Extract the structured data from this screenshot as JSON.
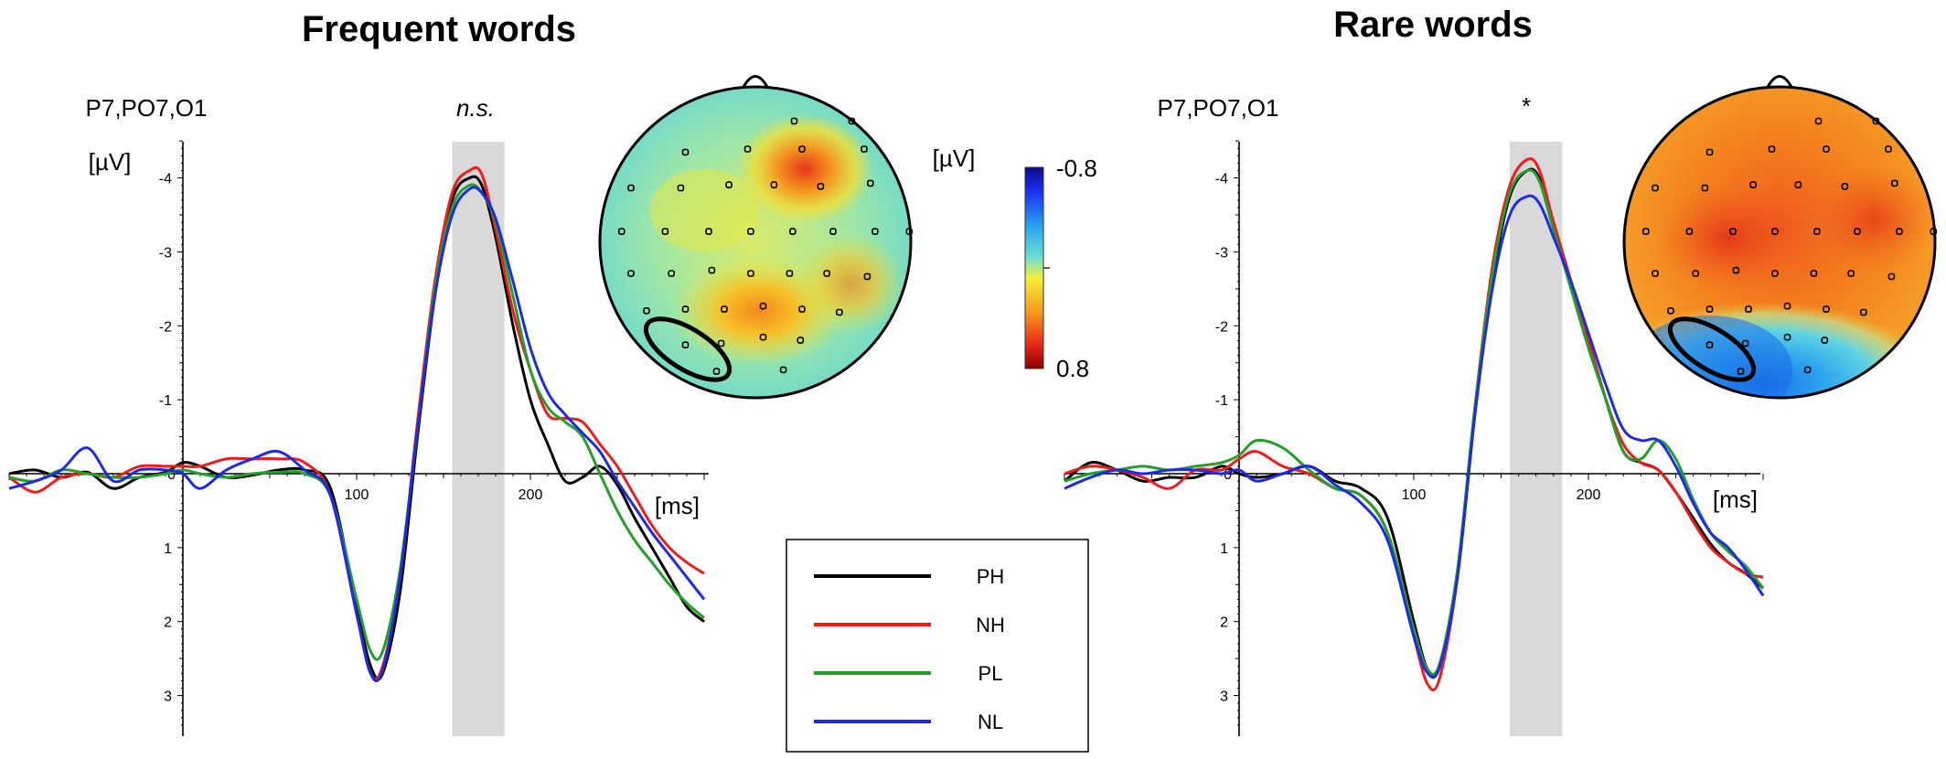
{
  "colors": {
    "PH": "#000000",
    "NH": "#ee1c1c",
    "PL": "#22a02a",
    "NL": "#1d2be6",
    "window": "#d9d9d9"
  },
  "colorbar": {
    "unit": "[µV]",
    "top_label": "-0.8",
    "bottom_label": "0.8"
  },
  "legend": {
    "entries": [
      {
        "label": "PH",
        "key": "PH"
      },
      {
        "label": "NH",
        "key": "NH"
      },
      {
        "label": "PL",
        "key": "PL"
      },
      {
        "label": "NL",
        "key": "NL"
      }
    ]
  },
  "chart_data": [
    {
      "type": "line",
      "title": "Frequent words",
      "electrodes": "P7,PO7,O1",
      "significance": "n.s.",
      "ylabel": "[µV]",
      "xlabel": "[ms]",
      "xlim": [
        -100,
        300
      ],
      "ylim": [
        3.5,
        -4.5
      ],
      "y_inverted": true,
      "xticks": [
        100,
        200
      ],
      "yticks": [
        -4,
        -3,
        -2,
        -1,
        1,
        2,
        3
      ],
      "highlight_window_ms": [
        155,
        185
      ],
      "topomap": "frequent",
      "series": [
        {
          "name": "PH",
          "x": [
            -100,
            -85,
            -70,
            -55,
            -40,
            -25,
            -10,
            0,
            10,
            25,
            40,
            55,
            70,
            85,
            100,
            108,
            115,
            125,
            135,
            145,
            155,
            165,
            172,
            180,
            190,
            200,
            210,
            220,
            230,
            240,
            250,
            260,
            270,
            280,
            290,
            300
          ],
          "y": [
            0,
            -0.05,
            0.05,
            -0.02,
            0.2,
            0.05,
            -0.02,
            -0.15,
            -0.1,
            0.05,
            0.02,
            -0.05,
            -0.05,
            0.2,
            1.8,
            2.6,
            2.7,
            1.6,
            -0.5,
            -2.4,
            -3.7,
            -4.0,
            -3.9,
            -3.2,
            -2.0,
            -1.0,
            -0.4,
            0.1,
            0.05,
            -0.1,
            0.15,
            0.6,
            1.0,
            1.4,
            1.8,
            2.0
          ]
        },
        {
          "name": "NH",
          "x": [
            -100,
            -85,
            -70,
            -55,
            -40,
            -25,
            -10,
            0,
            10,
            25,
            40,
            55,
            70,
            85,
            100,
            108,
            115,
            125,
            135,
            145,
            155,
            165,
            172,
            180,
            190,
            200,
            210,
            220,
            230,
            240,
            250,
            260,
            270,
            280,
            290,
            300
          ],
          "y": [
            0.05,
            0.25,
            0.05,
            0.0,
            0.05,
            -0.1,
            -0.1,
            -0.1,
            -0.1,
            -0.2,
            -0.2,
            -0.2,
            -0.15,
            0.3,
            1.9,
            2.7,
            2.6,
            1.4,
            -0.7,
            -2.6,
            -3.8,
            -4.1,
            -4.05,
            -3.3,
            -2.2,
            -1.4,
            -0.8,
            -0.75,
            -0.7,
            -0.4,
            -0.1,
            0.3,
            0.7,
            1.0,
            1.2,
            1.35
          ]
        },
        {
          "name": "PL",
          "x": [
            -100,
            -85,
            -70,
            -55,
            -40,
            -25,
            -10,
            0,
            10,
            25,
            40,
            55,
            70,
            85,
            100,
            108,
            115,
            125,
            135,
            145,
            155,
            165,
            172,
            180,
            190,
            200,
            210,
            220,
            230,
            240,
            250,
            260,
            270,
            280,
            290,
            300
          ],
          "y": [
            0.05,
            0.1,
            -0.05,
            0.0,
            0.05,
            0.05,
            0.0,
            -0.05,
            0.0,
            0.05,
            0.0,
            -0.02,
            0.0,
            0.3,
            1.7,
            2.4,
            2.4,
            1.3,
            -0.6,
            -2.5,
            -3.6,
            -3.9,
            -3.8,
            -3.4,
            -2.4,
            -1.4,
            -0.9,
            -0.7,
            -0.5,
            0.0,
            0.5,
            0.9,
            1.2,
            1.5,
            1.75,
            1.95
          ]
        },
        {
          "name": "NL",
          "x": [
            -100,
            -85,
            -70,
            -55,
            -40,
            -25,
            -10,
            0,
            10,
            25,
            40,
            55,
            70,
            85,
            100,
            108,
            115,
            125,
            135,
            145,
            155,
            165,
            172,
            180,
            190,
            200,
            210,
            220,
            230,
            240,
            250,
            260,
            270,
            280,
            290,
            300
          ],
          "y": [
            0.2,
            0.1,
            -0.05,
            -0.35,
            0.1,
            -0.05,
            -0.05,
            0.0,
            0.2,
            -0.05,
            -0.2,
            -0.3,
            -0.05,
            0.3,
            1.9,
            2.7,
            2.65,
            1.4,
            -0.6,
            -2.4,
            -3.5,
            -3.85,
            -3.8,
            -3.45,
            -2.6,
            -1.7,
            -1.1,
            -0.8,
            -0.55,
            -0.3,
            0.1,
            0.45,
            0.8,
            1.1,
            1.4,
            1.7
          ]
        }
      ]
    },
    {
      "type": "line",
      "title": "Rare words",
      "electrodes": "P7,PO7,O1",
      "significance": "*",
      "ylabel": "",
      "xlabel": "[ms]",
      "xlim": [
        -100,
        300
      ],
      "ylim": [
        3.5,
        -4.5
      ],
      "y_inverted": true,
      "xticks": [
        100,
        200
      ],
      "yticks": [
        -4,
        -3,
        -2,
        -1,
        1,
        2,
        3
      ],
      "highlight_window_ms": [
        155,
        185
      ],
      "topomap": "rare",
      "series": [
        {
          "name": "PH",
          "x": [
            -100,
            -85,
            -70,
            -55,
            -40,
            -25,
            -10,
            0,
            10,
            25,
            40,
            55,
            70,
            85,
            100,
            108,
            115,
            125,
            135,
            145,
            155,
            165,
            172,
            180,
            190,
            200,
            210,
            220,
            230,
            240,
            250,
            260,
            270,
            280,
            290,
            300
          ],
          "y": [
            0.1,
            -0.15,
            -0.05,
            0.1,
            0.05,
            0.05,
            -0.1,
            0.0,
            0.05,
            0.0,
            -0.1,
            0.1,
            0.2,
            0.6,
            2.0,
            2.65,
            2.6,
            1.4,
            -0.8,
            -2.6,
            -3.75,
            -4.1,
            -4.0,
            -3.4,
            -2.6,
            -1.8,
            -1.0,
            -0.3,
            -0.15,
            -0.05,
            0.25,
            0.6,
            0.95,
            1.2,
            1.35,
            1.55
          ]
        },
        {
          "name": "NH",
          "x": [
            -100,
            -85,
            -70,
            -55,
            -40,
            -25,
            -10,
            0,
            10,
            25,
            40,
            55,
            70,
            85,
            100,
            108,
            115,
            125,
            135,
            145,
            155,
            165,
            172,
            180,
            190,
            200,
            210,
            220,
            230,
            240,
            250,
            260,
            270,
            280,
            290,
            300
          ],
          "y": [
            0.0,
            -0.1,
            -0.05,
            0.05,
            0.2,
            -0.05,
            -0.05,
            -0.2,
            -0.3,
            -0.1,
            0.0,
            0.2,
            0.3,
            0.8,
            2.2,
            2.85,
            2.75,
            1.4,
            -0.9,
            -2.8,
            -3.9,
            -4.25,
            -4.1,
            -3.4,
            -2.6,
            -1.8,
            -1.0,
            -0.4,
            -0.15,
            -0.05,
            0.25,
            0.65,
            1.0,
            1.2,
            1.35,
            1.4
          ]
        },
        {
          "name": "PL",
          "x": [
            -100,
            -85,
            -70,
            -55,
            -40,
            -25,
            -10,
            0,
            10,
            25,
            40,
            55,
            70,
            85,
            100,
            108,
            115,
            125,
            135,
            145,
            155,
            165,
            172,
            180,
            190,
            200,
            210,
            220,
            230,
            240,
            250,
            260,
            270,
            280,
            290,
            300
          ],
          "y": [
            0.1,
            0.0,
            -0.05,
            -0.1,
            -0.05,
            -0.1,
            -0.15,
            -0.25,
            -0.45,
            -0.35,
            -0.05,
            0.2,
            0.3,
            0.8,
            2.1,
            2.65,
            2.55,
            1.3,
            -0.9,
            -2.7,
            -3.8,
            -4.1,
            -3.95,
            -3.3,
            -2.5,
            -1.7,
            -1.0,
            -0.3,
            -0.2,
            -0.45,
            -0.2,
            0.35,
            0.8,
            1.05,
            1.25,
            1.55
          ]
        },
        {
          "name": "NL",
          "x": [
            -100,
            -85,
            -70,
            -55,
            -40,
            -25,
            -10,
            0,
            10,
            25,
            40,
            55,
            70,
            85,
            100,
            108,
            115,
            125,
            135,
            145,
            155,
            165,
            172,
            180,
            190,
            200,
            210,
            220,
            230,
            240,
            250,
            260,
            270,
            280,
            290,
            300
          ],
          "y": [
            0.2,
            0.05,
            -0.05,
            0.0,
            -0.05,
            -0.05,
            0.0,
            -0.05,
            0.1,
            0.0,
            -0.1,
            0.15,
            0.4,
            0.9,
            2.2,
            2.7,
            2.6,
            1.4,
            -0.8,
            -2.5,
            -3.5,
            -3.75,
            -3.65,
            -3.2,
            -2.6,
            -1.9,
            -1.2,
            -0.6,
            -0.45,
            -0.45,
            -0.1,
            0.4,
            0.8,
            1.0,
            1.3,
            1.65
          ]
        }
      ]
    }
  ]
}
